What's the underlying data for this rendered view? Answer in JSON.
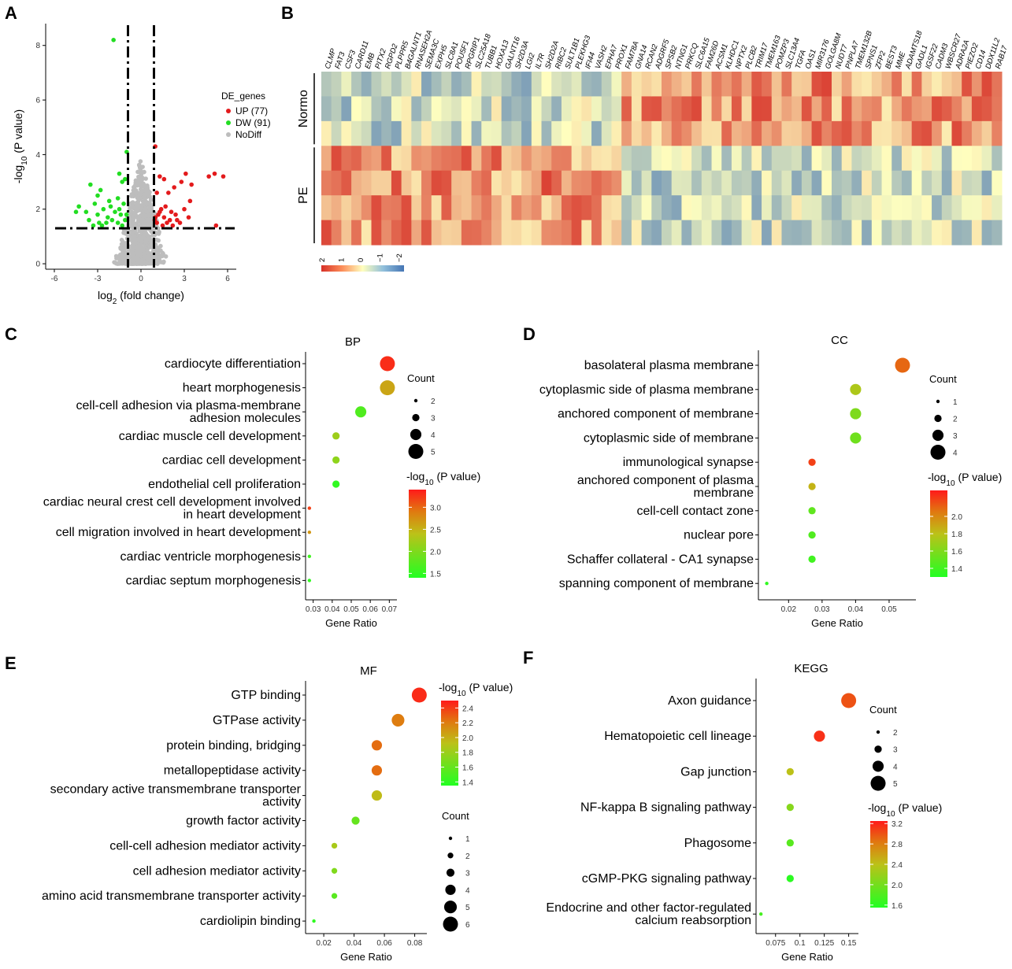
{
  "panels": {
    "A": "A",
    "B": "B",
    "C": "C",
    "D": "D",
    "E": "E",
    "F": "F"
  },
  "chart_data": [
    {
      "panel": "A",
      "type": "scatter",
      "xlabel_base": "log",
      "xlabel_sub": "2",
      "xlabel_rest": " (fold change)",
      "ylabel_pre": "-log",
      "ylabel_sub": "10",
      "ylabel_rest": " (P value)",
      "xticks": [
        -6,
        -3,
        0,
        3,
        6
      ],
      "yticks": [
        0,
        2,
        4,
        6,
        8
      ],
      "xlim": [
        -6.6,
        6.6
      ],
      "ylim": [
        -0.2,
        8.8
      ],
      "thresholds": {
        "x": [
          -0.9,
          0.9
        ],
        "y": 1.3
      },
      "legend_title": "DE_genes",
      "legend": [
        {
          "label": "UP (77)",
          "color": "#e31a1c"
        },
        {
          "label": "DW (91)",
          "color": "#22dd22"
        },
        {
          "label": "NoDiff",
          "color": "#bdbdbd"
        }
      ],
      "series": [
        {
          "name": "UP (77)",
          "color": "#e31a1c",
          "points": [
            [
              0.99,
              4.3
            ],
            [
              1.3,
              3.2
            ],
            [
              1.6,
              3.1
            ],
            [
              2.8,
              3.0
            ],
            [
              3.1,
              3.3
            ],
            [
              4.7,
              3.2
            ],
            [
              5.1,
              3.3
            ],
            [
              5.7,
              3.2
            ],
            [
              3.5,
              2.9
            ],
            [
              2.3,
              2.8
            ],
            [
              1.9,
              2.6
            ],
            [
              1.1,
              2.6
            ],
            [
              3.0,
              2.0
            ],
            [
              3.4,
              2.3
            ],
            [
              2.1,
              1.9
            ],
            [
              1.4,
              2.0
            ],
            [
              1.2,
              1.8
            ],
            [
              1.0,
              1.7
            ],
            [
              1.6,
              1.7
            ],
            [
              2.0,
              1.6
            ],
            [
              2.5,
              1.6
            ],
            [
              1.8,
              1.5
            ],
            [
              3.3,
              1.7
            ],
            [
              1.1,
              1.5
            ],
            [
              1.5,
              1.4
            ],
            [
              2.2,
              1.4
            ],
            [
              5.2,
              1.4
            ],
            [
              0.95,
              1.6
            ],
            [
              1.3,
              1.9
            ],
            [
              1.7,
              2.1
            ],
            [
              2.4,
              1.8
            ],
            [
              2.7,
              1.5
            ]
          ]
        },
        {
          "name": "DW (91)",
          "color": "#22dd22",
          "points": [
            [
              -1.9,
              8.2
            ],
            [
              -0.99,
              4.1
            ],
            [
              -1.5,
              3.3
            ],
            [
              -1.1,
              3.1
            ],
            [
              -1.3,
              3.0
            ],
            [
              -3.5,
              2.9
            ],
            [
              -2.8,
              2.7
            ],
            [
              -4.3,
              2.1
            ],
            [
              -4.5,
              1.9
            ],
            [
              -3.2,
              2.2
            ],
            [
              -2.6,
              2.0
            ],
            [
              -2.1,
              2.1
            ],
            [
              -1.6,
              2.4
            ],
            [
              -1.2,
              2.2
            ],
            [
              -3.0,
              1.8
            ],
            [
              -2.3,
              1.7
            ],
            [
              -1.8,
              1.9
            ],
            [
              -1.4,
              1.8
            ],
            [
              -2.9,
              1.5
            ],
            [
              -2.4,
              1.5
            ],
            [
              -2.0,
              1.6
            ],
            [
              -1.6,
              1.5
            ],
            [
              -1.1,
              1.6
            ],
            [
              -3.6,
              1.6
            ],
            [
              -3.3,
              1.4
            ],
            [
              -1.3,
              1.4
            ],
            [
              -2.7,
              1.4
            ],
            [
              -3.0,
              2.5
            ],
            [
              -1.0,
              1.8
            ],
            [
              -1.5,
              2.0
            ],
            [
              -2.2,
              2.3
            ],
            [
              -3.8,
              1.9
            ]
          ]
        }
      ]
    },
    {
      "panel": "B",
      "type": "heatmap",
      "genes": [
        "CLMP",
        "FAT3",
        "CSF3",
        "CARD11",
        "EMB",
        "PITX2",
        "RGPD2",
        "PLPPR5",
        "B4GALNT1",
        "RNASEH2A",
        "SEMA3C",
        "EXPH5",
        "SLC8A1",
        "POU5F1",
        "RPGRIP1",
        "SLC25A18",
        "TUBB1",
        "HOXA13",
        "GALNT16",
        "SH2D3A",
        "LGI2",
        "IL7R",
        "SH2D2A",
        "RIBC2",
        "SULT1B1",
        "PLEKHG3",
        "IFI44",
        "VASH2",
        "EPHA7",
        "PROX1",
        "FAM78A",
        "GNA14",
        "RCAN2",
        "ADGRF5",
        "SPSB2",
        "NTNG1",
        "PRKCQ",
        "SLC6A15",
        "FAM26D",
        "ACSM1",
        "KLHDC1",
        "NPTX2",
        "PLCB2",
        "TRIM17",
        "TMEM163",
        "POMZP3",
        "SLC13A4",
        "TGFA",
        "OAS1",
        "MIR3176",
        "GOLGA8M",
        "NUDT7",
        "PNPLA7",
        "TMEM132B",
        "SPNS1",
        "ZFP2",
        "BEST3",
        "MME",
        "ADAMTS18",
        "GADL1",
        "IGSF22",
        "CADM3",
        "WBSCR27",
        "ADRA2A",
        "PIEZO2",
        "CD14",
        "DDX11L2",
        "RAB17"
      ],
      "groups": [
        {
          "label": "Normo",
          "rows": 3
        },
        {
          "label": "PE",
          "rows": 4
        }
      ],
      "scale_ticks": [
        "2",
        "1",
        "0",
        "−1",
        "−2"
      ],
      "colors": {
        "high": "#d73027",
        "mid": "#ffffbf",
        "low": "#4575b4"
      }
    },
    {
      "panel": "C",
      "type": "scatter",
      "title": "BP",
      "xlabel": "Gene Ratio",
      "xticks": [
        0.03,
        0.04,
        0.05,
        0.06,
        0.07
      ],
      "xtick_labels": [
        "0.03",
        "0.04",
        "0.05",
        "0.06",
        "0.07"
      ],
      "xlim": [
        0.026,
        0.074
      ],
      "terms": [
        "cardiocyte differentiation",
        "heart morphogenesis",
        "cell-cell adhesion via plasma-membrane adhesion molecules",
        "cardiac muscle cell development",
        "cardiac cell development",
        "endothelial cell proliferation",
        "cardiac neural crest cell development involved in heart development",
        "cell migration involved in heart development",
        "cardiac ventricle morphogenesis",
        "cardiac septum morphogenesis"
      ],
      "term_lines": [
        [
          "cardiocyte differentiation"
        ],
        [
          "heart morphogenesis"
        ],
        [
          "cell-cell adhesion via plasma-membrane",
          "adhesion molecules"
        ],
        [
          "cardiac muscle cell development"
        ],
        [
          "cardiac cell development"
        ],
        [
          "endothelial cell proliferation"
        ],
        [
          "cardiac neural crest cell development involved",
          "in heart development"
        ],
        [
          "cell migration involved in heart development"
        ],
        [
          "cardiac ventricle morphogenesis"
        ],
        [
          "cardiac septum morphogenesis"
        ]
      ],
      "gene_ratio": [
        0.069,
        0.069,
        0.055,
        0.042,
        0.042,
        0.042,
        0.028,
        0.028,
        0.028,
        0.028
      ],
      "count": [
        5,
        5,
        4,
        3,
        3,
        3,
        2,
        2,
        2,
        2
      ],
      "neglog10p": [
        3.3,
        2.6,
        1.7,
        2.2,
        2.1,
        1.5,
        3.2,
        2.7,
        1.6,
        1.5
      ],
      "color_title_pre": "-log",
      "color_title_sub": "10",
      "color_title_rest": " (P value)",
      "color_ticks": [
        1.5,
        2.0,
        2.5,
        3.0
      ],
      "color_tick_labels": [
        "1.5",
        "2.0",
        "2.5",
        "3.0"
      ],
      "color_range": [
        1.4,
        3.4
      ],
      "size_title": "Count",
      "size_ticks": [
        2,
        3,
        4,
        5
      ],
      "size_labels": [
        "2",
        "3",
        "4",
        "5"
      ]
    },
    {
      "panel": "D",
      "type": "scatter",
      "title": "CC",
      "xlabel": "Gene Ratio",
      "xticks": [
        0.02,
        0.03,
        0.04,
        0.05
      ],
      "xtick_labels": [
        "0.02",
        "0.03",
        "0.04",
        "0.05"
      ],
      "xlim": [
        0.011,
        0.058
      ],
      "terms": [
        "basolateral plasma membrane",
        "cytoplasmic side of plasma membrane",
        "anchored component of membrane",
        "cytoplasmic side of membrane",
        "immunological synapse",
        "anchored component of plasma membrane",
        "cell-cell contact zone",
        "nuclear pore",
        "Schaffer collateral - CA1 synapse",
        "spanning component of membrane"
      ],
      "term_lines": [
        [
          "basolateral plasma membrane"
        ],
        [
          "cytoplasmic side of plasma membrane"
        ],
        [
          "anchored component of membrane"
        ],
        [
          "cytoplasmic side of membrane"
        ],
        [
          "immunological synapse"
        ],
        [
          "anchored component of plasma",
          "membrane"
        ],
        [
          "cell-cell contact zone"
        ],
        [
          "nuclear pore"
        ],
        [
          "Schaffer collateral - CA1 synapse"
        ],
        [
          "spanning component of membrane"
        ]
      ],
      "gene_ratio": [
        0.054,
        0.04,
        0.04,
        0.04,
        0.027,
        0.027,
        0.027,
        0.027,
        0.027,
        0.0135
      ],
      "count": [
        4,
        3,
        3,
        3,
        2,
        2,
        2,
        2,
        2,
        1
      ],
      "neglog10p": [
        2.1,
        1.75,
        1.6,
        1.55,
        2.2,
        1.85,
        1.5,
        1.45,
        1.4,
        1.35
      ],
      "color_title_pre": "-log",
      "color_title_sub": "10",
      "color_title_rest": " (P value)",
      "color_ticks": [
        1.4,
        1.6,
        1.8,
        2.0
      ],
      "color_tick_labels": [
        "1.4",
        "1.6",
        "1.8",
        "2.0"
      ],
      "color_range": [
        1.3,
        2.3
      ],
      "size_title": "Count",
      "size_ticks": [
        1,
        2,
        3,
        4
      ],
      "size_labels": [
        "1",
        "2",
        "3",
        "4"
      ]
    },
    {
      "panel": "E",
      "type": "scatter",
      "title": "MF",
      "xlabel": "Gene Ratio",
      "xticks": [
        0.02,
        0.04,
        0.06,
        0.08
      ],
      "xtick_labels": [
        "0.02",
        "0.04",
        "0.06",
        "0.08"
      ],
      "xlim": [
        0.008,
        0.088
      ],
      "terms": [
        "GTP binding",
        "GTPase activity",
        "protein binding, bridging",
        "metallopeptidase activity",
        "secondary active transmembrane transporter activity",
        "growth factor activity",
        "cell-cell adhesion mediator activity",
        "cell adhesion mediator activity",
        "amino acid transmembrane transporter activity",
        "cardiolipin binding"
      ],
      "term_lines": [
        [
          "GTP binding"
        ],
        [
          "GTPase activity"
        ],
        [
          "protein binding, bridging"
        ],
        [
          "metallopeptidase activity"
        ],
        [
          "secondary active transmembrane transporter",
          "activity"
        ],
        [
          "growth factor activity"
        ],
        [
          "cell-cell adhesion mediator activity"
        ],
        [
          "cell adhesion mediator activity"
        ],
        [
          "amino acid transmembrane transporter activity"
        ],
        [
          "cardiolipin binding"
        ]
      ],
      "gene_ratio": [
        0.083,
        0.069,
        0.055,
        0.055,
        0.055,
        0.041,
        0.027,
        0.027,
        0.027,
        0.0135
      ],
      "count": [
        6,
        5,
        4,
        4,
        4,
        3,
        2,
        2,
        2,
        1
      ],
      "neglog10p": [
        2.45,
        2.2,
        2.25,
        2.25,
        1.95,
        1.6,
        1.85,
        1.7,
        1.55,
        1.4
      ],
      "color_title_pre": "-log",
      "color_title_sub": "10",
      "color_title_rest": " (P value)",
      "color_ticks": [
        1.4,
        1.6,
        1.8,
        2.0,
        2.2,
        2.4
      ],
      "color_tick_labels": [
        "1.4",
        "1.6",
        "1.8",
        "2.0",
        "2.2",
        "2.4"
      ],
      "color_range": [
        1.35,
        2.5
      ],
      "size_title": "Count",
      "size_ticks": [
        1,
        2,
        3,
        4,
        5,
        6
      ],
      "size_labels": [
        "1",
        "2",
        "3",
        "4",
        "5",
        "6"
      ]
    },
    {
      "panel": "F",
      "type": "scatter",
      "title": "KEGG",
      "xlabel": "Gene Ratio",
      "xticks": [
        0.075,
        0.1,
        0.125,
        0.15
      ],
      "xtick_labels": [
        "0.075",
        "0.1",
        "0.125",
        "0.15"
      ],
      "xlim": [
        0.055,
        0.16
      ],
      "terms": [
        "Axon guidance",
        "Hematopoietic cell lineage",
        "Gap junction",
        "NF-kappa B signaling pathway",
        "Phagosome",
        "cGMP-PKG signaling pathway",
        "Endocrine and other factor-regulated calcium reabsorption"
      ],
      "term_lines": [
        [
          "Axon guidance"
        ],
        [
          "Hematopoietic cell lineage"
        ],
        [
          "Gap junction"
        ],
        [
          "NF-kappa B signaling pathway"
        ],
        [
          "Phagosome"
        ],
        [
          "cGMP-PKG signaling pathway"
        ],
        [
          "Endocrine and other factor-regulated",
          "calcium reabsorption"
        ]
      ],
      "gene_ratio": [
        0.15,
        0.12,
        0.09,
        0.09,
        0.09,
        0.09,
        0.06
      ],
      "count": [
        5,
        4,
        3,
        3,
        3,
        3,
        2
      ],
      "neglog10p": [
        3.0,
        3.15,
        2.4,
        2.1,
        1.85,
        1.6,
        1.75
      ],
      "color_title_pre": "-log",
      "color_title_sub": "10",
      "color_title_rest": " (P value)",
      "color_ticks": [
        1.6,
        2.0,
        2.4,
        2.8,
        3.2
      ],
      "color_tick_labels": [
        "1.6",
        "2.0",
        "2.4",
        "2.8",
        "3.2"
      ],
      "color_range": [
        1.55,
        3.25
      ],
      "size_title": "Count",
      "size_ticks": [
        2,
        3,
        4,
        5
      ],
      "size_labels": [
        "2",
        "3",
        "4",
        "5"
      ]
    }
  ]
}
